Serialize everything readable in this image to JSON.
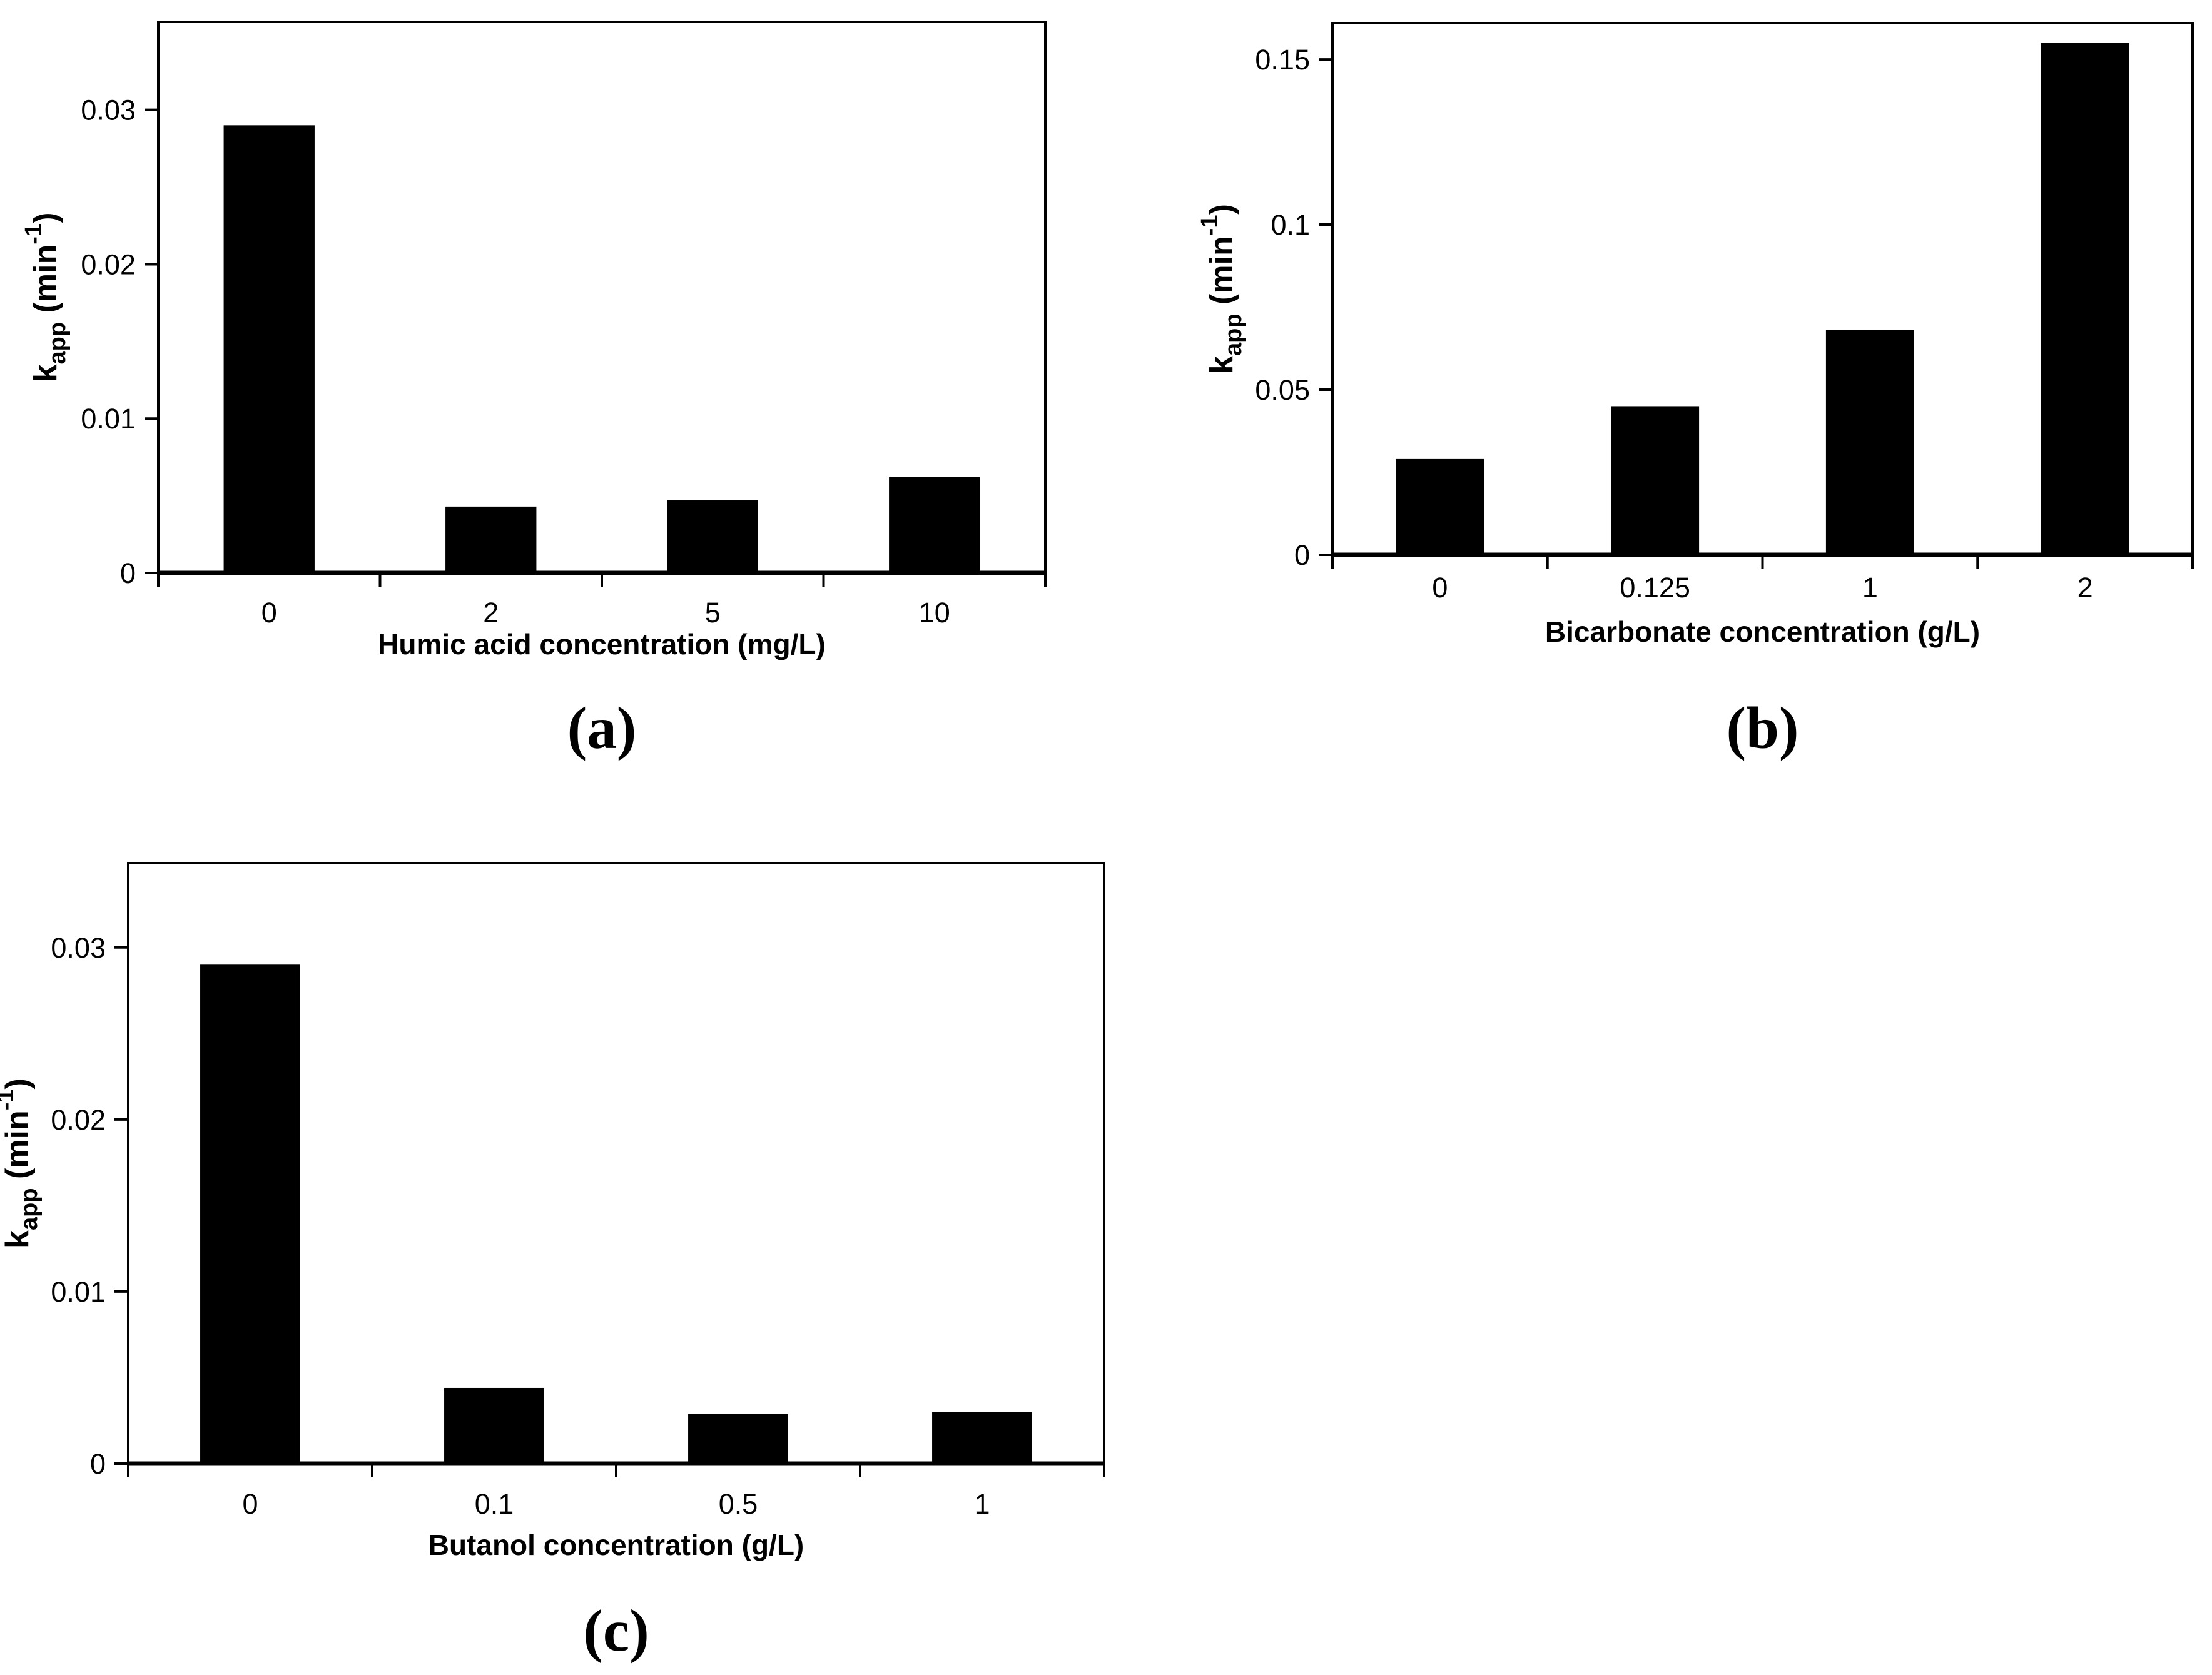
{
  "figure": {
    "background": "#ffffff",
    "bar_color": "#000000",
    "axis_color": "#000000",
    "text_color": "#000000"
  },
  "chart_data": [
    {
      "id": "a",
      "type": "bar",
      "caption": "(a)",
      "categories": [
        "0",
        "2",
        "5",
        "10"
      ],
      "values": [
        0.029,
        0.0043,
        0.0047,
        0.0062
      ],
      "xlabel": "Humic acid concentration (mg/L)",
      "ylabel": "k_{app} (min^{-1})",
      "yticks": [
        0,
        0.01,
        0.02,
        0.03
      ],
      "ytick_labels": [
        "0",
        "0.01",
        "0.02",
        "0.03"
      ],
      "ylim": [
        0,
        0.0357
      ],
      "grid": false,
      "legend_position": "none",
      "bar_color": "#000000"
    },
    {
      "id": "b",
      "type": "bar",
      "caption": "(b)",
      "categories": [
        "0",
        "0.125",
        "1",
        "2"
      ],
      "values": [
        0.029,
        0.045,
        0.068,
        0.155
      ],
      "xlabel": "Bicarbonate concentration (g/L)",
      "ylabel": "k_{app} (min^{-1})",
      "yticks": [
        0,
        0.05,
        0.1,
        0.15
      ],
      "ytick_labels": [
        "0",
        "0.05",
        "0.1",
        "0.15"
      ],
      "ylim": [
        0,
        0.161
      ],
      "grid": false,
      "legend_position": "none",
      "bar_color": "#000000"
    },
    {
      "id": "c",
      "type": "bar",
      "caption": "(c)",
      "categories": [
        "0",
        "0.1",
        "0.5",
        "1"
      ],
      "values": [
        0.029,
        0.0044,
        0.0029,
        0.003
      ],
      "xlabel": "Butanol concentration (g/L)",
      "ylabel": "k_{app} (min^{-1})",
      "yticks": [
        0,
        0.01,
        0.02,
        0.03
      ],
      "ytick_labels": [
        "0",
        "0.01",
        "0.02",
        "0.03"
      ],
      "ylim": [
        0,
        0.0349
      ],
      "grid": false,
      "legend_position": "none",
      "bar_color": "#000000"
    }
  ]
}
